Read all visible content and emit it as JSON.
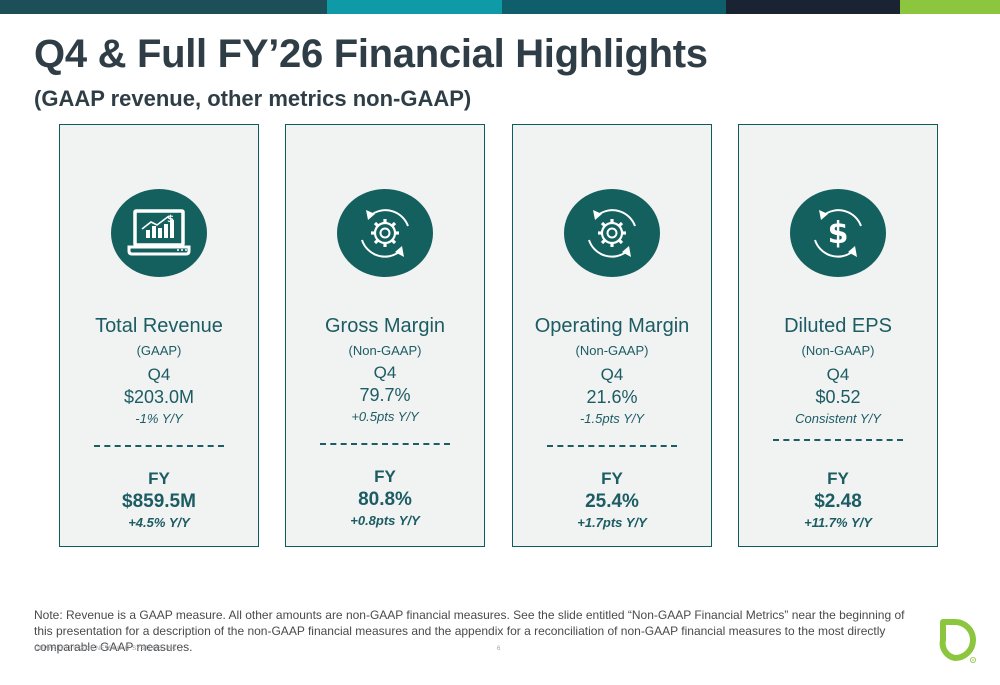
{
  "top_bar": {
    "colors": [
      "#1c4f57",
      "#0e9aa7",
      "#0e5e6b",
      "#1a2332",
      "#8cc63f"
    ]
  },
  "header": {
    "title": "Q4 & Full FY’26 Financial Highlights",
    "subtitle": "(GAAP revenue, other metrics non-GAAP)"
  },
  "cards": [
    {
      "icon": "laptop-chart-dollar-icon",
      "title": "Total Revenue",
      "qualifier": "(GAAP)",
      "q_label": "Q4",
      "q_value": "$203.0M",
      "q_change": "-1% Y/Y",
      "fy_label": "FY",
      "fy_value": "$859.5M",
      "fy_change": "+4.5% Y/Y"
    },
    {
      "icon": "gear-cycle-icon",
      "title": "Gross Margin",
      "qualifier": "(Non-GAAP)",
      "q_label": "Q4",
      "q_value": "79.7%",
      "q_change": "+0.5pts Y/Y",
      "fy_label": "FY",
      "fy_value": "80.8%",
      "fy_change": "+0.8pts Y/Y"
    },
    {
      "icon": "gear-cycle-icon",
      "title": "Operating Margin",
      "qualifier": "(Non-GAAP)",
      "q_label": "Q4",
      "q_value": "21.6%",
      "q_change": "-1.5pts Y/Y",
      "fy_label": "FY",
      "fy_value": "25.4%",
      "fy_change": "+1.7pts Y/Y"
    },
    {
      "icon": "dollar-cycle-icon",
      "title": "Diluted EPS",
      "qualifier": "(Non-GAAP)",
      "q_label": "Q4",
      "q_value": "$0.52",
      "q_change": "Consistent Y/Y",
      "fy_label": "FY",
      "fy_value": "$2.48",
      "fy_change": "+11.7% Y/Y"
    }
  ],
  "footer": {
    "note": "Note: Revenue is a GAAP measure. All other amounts are non-GAAP financial measures. See the slide entitled “Non-GAAP Financial Metrics” near the beginning of this presentation for a description of the non-GAAP financial measures and the appendix for a reconciliation of non-GAAP financial measures to the most directly comparable GAAP measures.",
    "copyright": "COPYRIGHT © 2026 NETSCOUT SYSTEMS, INC.  |",
    "page_number": "6",
    "logo": "netscout-logo-icon"
  },
  "colors": {
    "card_background": "#f1f2f2",
    "card_border": "#0f5c5c",
    "icon_circle": "#13605f",
    "text_teal": "#1c5c63",
    "title_dark": "#2f3e46",
    "logo_green": "#8cc63f"
  }
}
